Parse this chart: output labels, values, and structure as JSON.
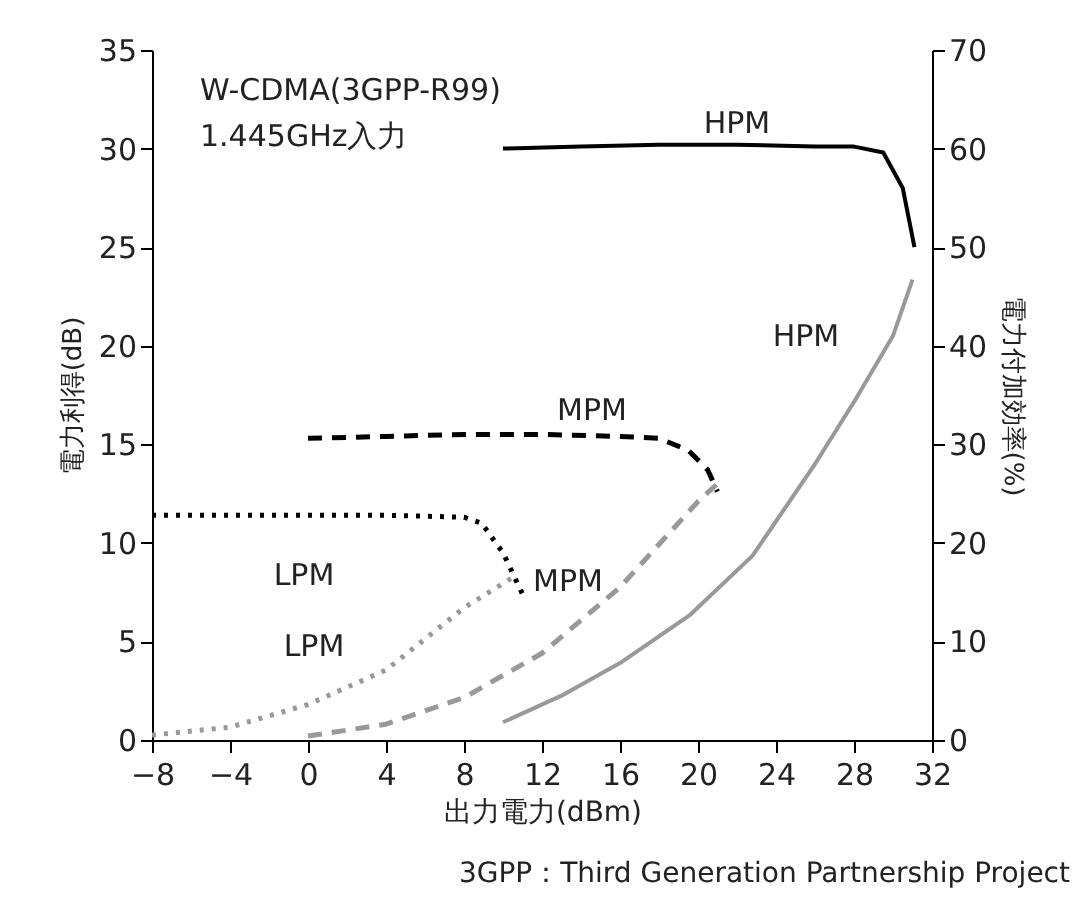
{
  "chart_data": {
    "type": "line",
    "xlabel": "出力電力(dBm)",
    "ylabel": "電力利得(dB)",
    "y2label": "電力付加効率(%)",
    "xlim": [
      -8,
      32
    ],
    "xticks": [
      {
        "value": -8,
        "label": "−8"
      },
      {
        "value": -4,
        "label": "−4"
      },
      0,
      4,
      8,
      12,
      16,
      20,
      24,
      28,
      32
    ],
    "ylim": [
      0,
      35
    ],
    "yticks": [
      0,
      5,
      10,
      15,
      20,
      25,
      30,
      35
    ],
    "y2lim": [
      0,
      70
    ],
    "y2ticks": [
      0,
      10,
      20,
      30,
      40,
      50,
      60,
      70
    ],
    "grid": false,
    "series": [
      {
        "name": "HPM",
        "color": "#000000",
        "line_style": "solid",
        "axis": "y",
        "x": [
          10,
          14,
          18,
          22,
          26,
          28,
          29.5,
          30.5,
          31.1
        ],
        "values": [
          30.0,
          30.1,
          30.2,
          30.2,
          30.1,
          30.1,
          29.8,
          28.0,
          25.0
        ]
      },
      {
        "name": "MPM",
        "color": "#000000",
        "line_style": "dashed",
        "axis": "y",
        "x": [
          0,
          4,
          8,
          12,
          16,
          18,
          19.5,
          20.5,
          21
        ],
        "values": [
          15.3,
          15.4,
          15.5,
          15.5,
          15.4,
          15.3,
          14.7,
          13.7,
          12.6
        ]
      },
      {
        "name": "LPM",
        "color": "#000000",
        "line_style": "dotted",
        "axis": "y",
        "x": [
          -8,
          -4,
          0,
          4,
          8,
          8.9,
          10,
          11
        ],
        "values": [
          11.4,
          11.4,
          11.4,
          11.4,
          11.3,
          11.0,
          9.5,
          7.4
        ]
      },
      {
        "name": "HPM",
        "color": "#999999",
        "line_style": "solid",
        "axis": "y2",
        "x": [
          10,
          13,
          16,
          19.6,
          22.8,
          26,
          28,
          30,
          31
        ],
        "values": [
          1.8,
          4.5,
          7.8,
          12.7,
          18.7,
          28,
          34.3,
          41,
          46.7
        ]
      },
      {
        "name": "MPM",
        "color": "#999999",
        "line_style": "dashed",
        "axis": "y2",
        "x": [
          0,
          4,
          8,
          12,
          16,
          20,
          21
        ],
        "values": [
          0.4,
          1.6,
          4.3,
          8.8,
          15.5,
          24.2,
          26
        ]
      },
      {
        "name": "LPM",
        "color": "#999999",
        "line_style": "dotted",
        "axis": "y2",
        "x": [
          -8,
          -4,
          0,
          4,
          8,
          10.5
        ],
        "values": [
          0.5,
          1.3,
          3.6,
          7.1,
          13.4,
          16.5
        ]
      }
    ],
    "annotations": [
      "W-CDMA(3GPP-R99)",
      "1.445GHz入力",
      "3GPP：Third Generation Partnership Project"
    ]
  }
}
